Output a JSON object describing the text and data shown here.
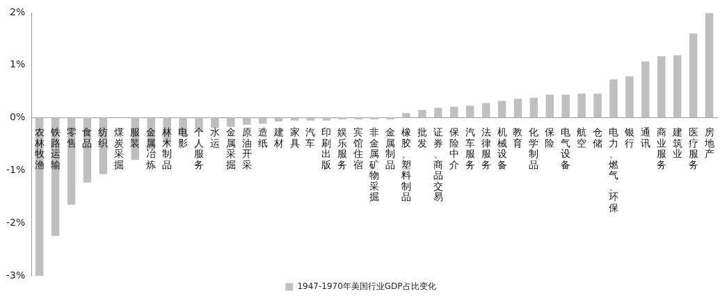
{
  "chart_data": {
    "type": "bar",
    "categories": [
      "农林牧渔",
      "铁路运输",
      "零售",
      "食品",
      "纺织",
      "煤炭采掘",
      "服装",
      "金属冶炼",
      "林木制品",
      "电影",
      "个人服务",
      "水运",
      "金属采掘",
      "原油开采",
      "造纸",
      "建材",
      "家具",
      "汽车",
      "印刷出版",
      "娱乐服务",
      "宾馆住宿",
      "非金属矿物采掘",
      "金属制品",
      "橡胶、塑料制品",
      "批发",
      "证券、商品交易",
      "保险中介",
      "汽车服务",
      "法律服务",
      "机械设备",
      "教育",
      "化学制品",
      "保险",
      "电气设备",
      "航空",
      "仓储",
      "电力、燃气、环保",
      "银行",
      "通讯",
      "商业服务",
      "建筑业",
      "医疗服务",
      "房地产"
    ],
    "series": [
      {
        "name": "1947-1970年美国行业GDP占比变化",
        "color": "#bfbfbf",
        "values": [
          -3.0,
          -2.24,
          -1.65,
          -1.23,
          -1.07,
          null,
          -0.8,
          -0.6,
          -0.5,
          -0.35,
          -0.27,
          -0.19,
          -0.17,
          -0.13,
          -0.11,
          -0.07,
          -0.05,
          -0.05,
          -0.05,
          -0.03,
          -0.03,
          -0.03,
          -0.03,
          0.09,
          0.15,
          0.19,
          0.21,
          0.23,
          0.28,
          0.32,
          0.36,
          0.38,
          0.44,
          0.44,
          0.46,
          0.46,
          0.73,
          0.79,
          1.07,
          1.17,
          1.19,
          1.6,
          1.99
        ]
      }
    ],
    "ylim": [
      -3,
      2
    ],
    "yticks": [
      {
        "value": -3,
        "label": "-3%"
      },
      {
        "value": -2,
        "label": "-2%"
      },
      {
        "value": -1,
        "label": "-1%"
      },
      {
        "value": 0,
        "label": "0%"
      },
      {
        "value": 1,
        "label": "1%"
      },
      {
        "value": 2,
        "label": "2%"
      }
    ],
    "grid": false,
    "legend": "bottom"
  }
}
